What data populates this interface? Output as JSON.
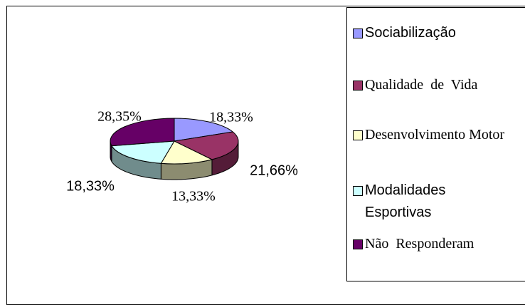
{
  "chart_data": {
    "type": "pie",
    "categories": [
      "Sociabilização",
      "Qualidade  de  Vida",
      "Desenvolvimento Motor",
      "Modalidades Esportivas",
      "Não  Responderam"
    ],
    "values": [
      18.33,
      21.66,
      13.33,
      18.33,
      28.35
    ],
    "value_labels": [
      "18,33%",
      "21,66%",
      "13,33%",
      "18,33%",
      "28,35%"
    ],
    "colors": [
      "#9999ff",
      "#993366",
      "#ffffcc",
      "#ccffff",
      "#660066"
    ]
  }
}
